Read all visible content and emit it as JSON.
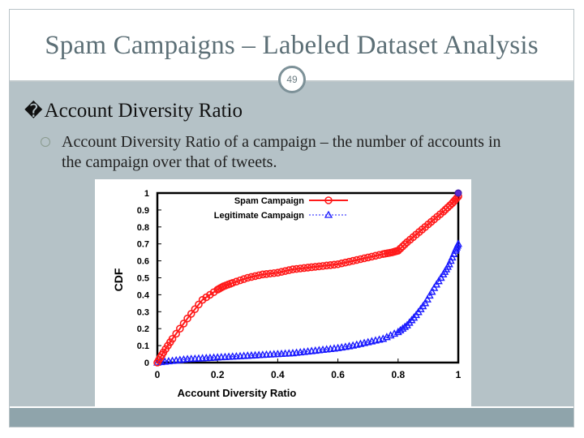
{
  "slide": {
    "title": "Spam Campaigns – Labeled Dataset Analysis",
    "page_number": "49",
    "bullet_glyph": "�",
    "bullet": "Account Diversity Ratio",
    "sub_bullet": "Account Diversity Ratio of a campaign – the number of accounts in the campaign over that of tweets."
  },
  "colors": {
    "accent": "#5c6f76",
    "content_bg": "#b5c2c7",
    "footer": "#8fa4ab",
    "spam": "#ff1a1a",
    "legit": "#1a1aff"
  },
  "chart_data": {
    "type": "line",
    "title": "",
    "xlabel": "Account Diversity Ratio",
    "ylabel": "CDF",
    "xlim": [
      0,
      1
    ],
    "ylim": [
      0,
      1
    ],
    "x_ticks": [
      "0",
      "0.2",
      "0.4",
      "0.6",
      "0.8",
      "1"
    ],
    "y_ticks": [
      "0",
      "0.1",
      "0.2",
      "0.3",
      "0.4",
      "0.5",
      "0.6",
      "0.7",
      "0.8",
      "0.9",
      "1"
    ],
    "legend_position": "top-left",
    "series": [
      {
        "name": "Spam Campaign",
        "marker": "circle",
        "color": "#ff1a1a",
        "points": [
          [
            0,
            0
          ],
          [
            0.02,
            0.06
          ],
          [
            0.05,
            0.14
          ],
          [
            0.1,
            0.26
          ],
          [
            0.15,
            0.37
          ],
          [
            0.2,
            0.43
          ],
          [
            0.22,
            0.45
          ],
          [
            0.25,
            0.47
          ],
          [
            0.3,
            0.5
          ],
          [
            0.35,
            0.52
          ],
          [
            0.4,
            0.53
          ],
          [
            0.45,
            0.55
          ],
          [
            0.5,
            0.56
          ],
          [
            0.55,
            0.57
          ],
          [
            0.6,
            0.58
          ],
          [
            0.65,
            0.6
          ],
          [
            0.7,
            0.62
          ],
          [
            0.75,
            0.64
          ],
          [
            0.78,
            0.65
          ],
          [
            0.8,
            0.66
          ],
          [
            0.83,
            0.71
          ],
          [
            0.87,
            0.77
          ],
          [
            0.91,
            0.83
          ],
          [
            0.95,
            0.89
          ],
          [
            0.98,
            0.94
          ],
          [
            1.0,
            0.98
          ]
        ]
      },
      {
        "name": "Legitimate Campaign",
        "marker": "triangle",
        "color": "#1a1aff",
        "points": [
          [
            0,
            0
          ],
          [
            0.05,
            0.01
          ],
          [
            0.1,
            0.02
          ],
          [
            0.15,
            0.025
          ],
          [
            0.2,
            0.03
          ],
          [
            0.25,
            0.035
          ],
          [
            0.3,
            0.04
          ],
          [
            0.35,
            0.045
          ],
          [
            0.4,
            0.05
          ],
          [
            0.45,
            0.055
          ],
          [
            0.5,
            0.065
          ],
          [
            0.55,
            0.075
          ],
          [
            0.6,
            0.085
          ],
          [
            0.65,
            0.1
          ],
          [
            0.7,
            0.12
          ],
          [
            0.75,
            0.14
          ],
          [
            0.8,
            0.18
          ],
          [
            0.83,
            0.22
          ],
          [
            0.86,
            0.28
          ],
          [
            0.89,
            0.35
          ],
          [
            0.92,
            0.44
          ],
          [
            0.95,
            0.52
          ],
          [
            0.97,
            0.58
          ],
          [
            0.99,
            0.66
          ],
          [
            1.0,
            0.7
          ]
        ]
      }
    ]
  }
}
